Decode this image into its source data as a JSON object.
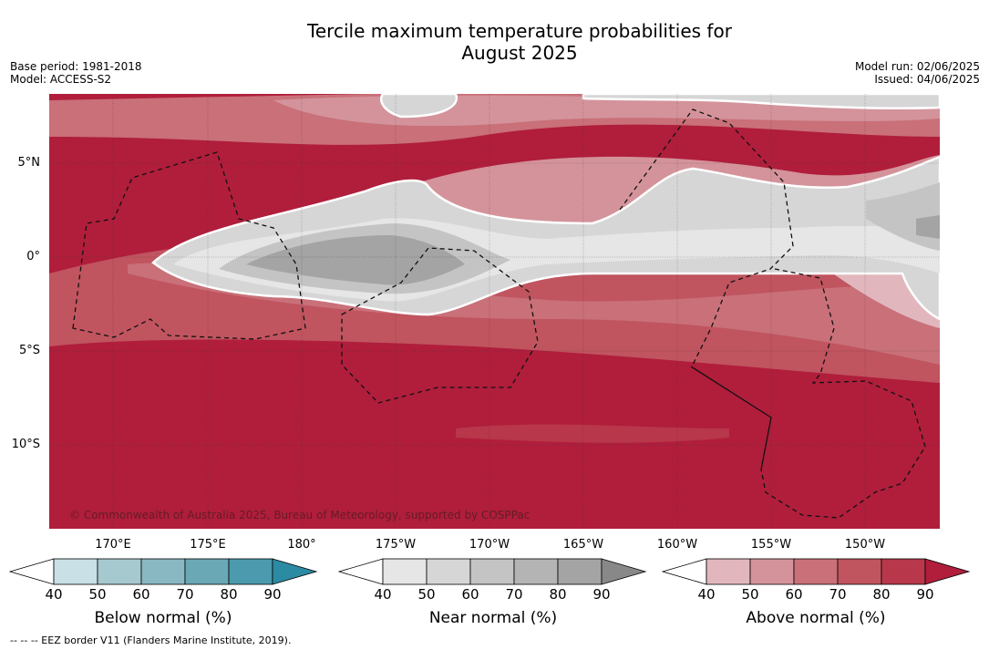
{
  "title_line1": "Tercile maximum temperature probabilities for",
  "title_line2": "August 2025",
  "meta_left": [
    "Base period: 1981-2018",
    "Model: ACCESS-S2"
  ],
  "meta_right": [
    "Model run: 02/06/2025",
    "Issued: 04/06/2025"
  ],
  "lat_labels": [
    "5°N",
    "0°",
    "5°S",
    "10°S"
  ],
  "lon_labels": [
    "170°E",
    "175°E",
    "180°",
    "175°W",
    "170°W",
    "165°W",
    "160°W",
    "155°W",
    "150°W"
  ],
  "copyright": "© Commonwealth of Australia 2025, Bureau of Meteorology, supported by COSPPac",
  "colorbars": [
    {
      "title": "Below normal (%)",
      "ticks": [
        "40",
        "50",
        "60",
        "70",
        "80",
        "90"
      ],
      "colors": [
        "#ffffff",
        "#c8e0e6",
        "#a6c9d0",
        "#89b7c2",
        "#6aa8b6",
        "#4b9aad",
        "#2b8ba3"
      ]
    },
    {
      "title": "Near normal (%)",
      "ticks": [
        "40",
        "50",
        "60",
        "70",
        "80",
        "90"
      ],
      "colors": [
        "#ffffff",
        "#e6e6e6",
        "#d6d6d6",
        "#c4c4c4",
        "#b4b4b4",
        "#a4a4a4",
        "#888888"
      ]
    },
    {
      "title": "Above normal (%)",
      "ticks": [
        "40",
        "50",
        "60",
        "70",
        "80",
        "90"
      ],
      "colors": [
        "#ffffff",
        "#e1b7bd",
        "#d4939b",
        "#c97079",
        "#c0545f",
        "#b8374a",
        "#b01e3c"
      ]
    }
  ],
  "footer": "--  --  -- EEZ border V11 (Flanders Marine Institute, 2019)."
}
